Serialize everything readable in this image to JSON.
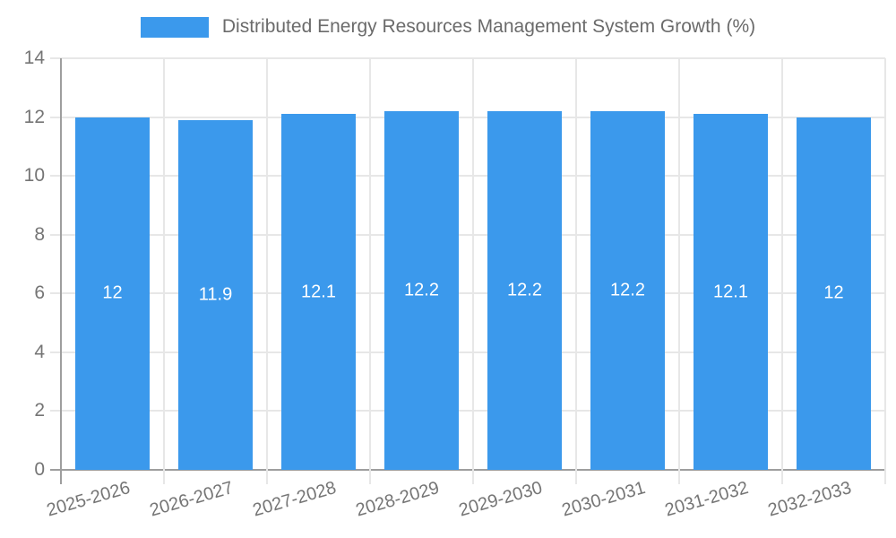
{
  "legend": {
    "label": "Distributed Energy Resources Management System Growth (%)"
  },
  "colors": {
    "bar": "#3B99EC",
    "grid": "#E7E7E7",
    "axis": "#9E9E9E",
    "tick_text": "#757575",
    "legend_text": "#6B6B6B",
    "bar_label_text": "#FFFFFF",
    "background": "#FFFFFF"
  },
  "chart_data": {
    "type": "bar",
    "title": "Distributed Energy Resources Management System Growth (%)",
    "categories": [
      "2025-2026",
      "2026-2027",
      "2027-2028",
      "2028-2029",
      "2029-2030",
      "2030-2031",
      "2031-2032",
      "2032-2033"
    ],
    "values": [
      12,
      11.9,
      12.1,
      12.2,
      12.2,
      12.2,
      12.1,
      12
    ],
    "bar_labels": [
      "12",
      "11.9",
      "12.1",
      "12.2",
      "12.2",
      "12.2",
      "12.1",
      "12"
    ],
    "xlabel": "",
    "ylabel": "",
    "ylim": [
      0,
      14
    ],
    "yticks": [
      0,
      2,
      4,
      6,
      8,
      10,
      12,
      14
    ],
    "grid": true,
    "legend_position": "top",
    "bar_label_position": "center"
  }
}
